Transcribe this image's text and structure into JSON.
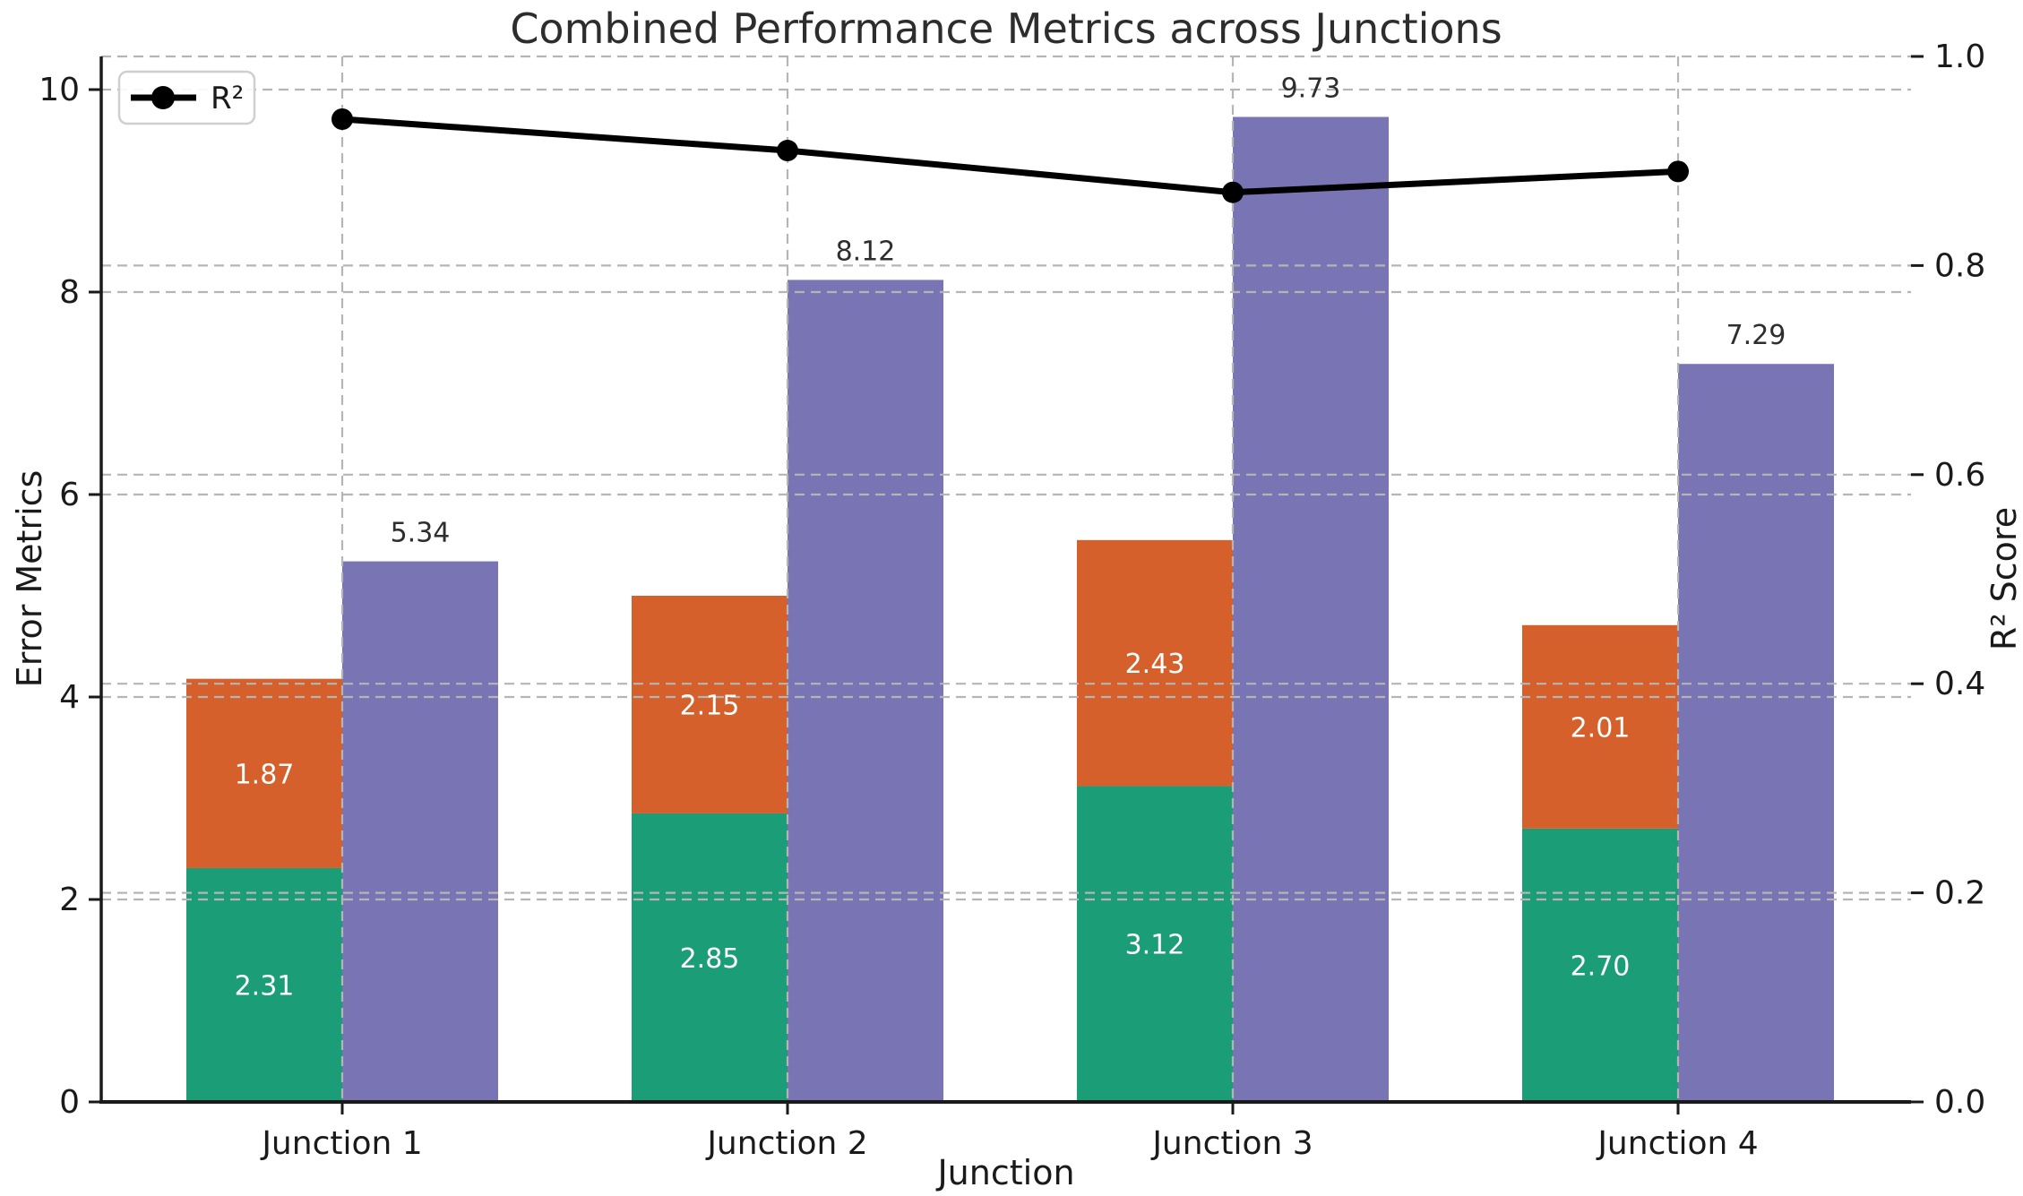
{
  "title": "Combined Performance Metrics across Junctions",
  "axes": {
    "x_label": "Junction",
    "y_left_label": "Error Metrics",
    "y_right_label": "R² Score",
    "y_left_ticks": [
      "0",
      "2",
      "4",
      "6",
      "8",
      "10"
    ],
    "y_right_ticks": [
      "0.0",
      "0.2",
      "0.4",
      "0.6",
      "0.8",
      "1.0"
    ]
  },
  "legend": {
    "r2_label": "R²",
    "position": "upper-left"
  },
  "colors": {
    "green_bar": "#1b9e77",
    "orange_bar": "#d5602b",
    "purple_bar": "#7974b4",
    "line": "#000000",
    "grid": "#b5b5b5",
    "bar_label_light": "#ffffff",
    "bar_label_dark": "#2e2e2e",
    "spine": "#1a1a1a"
  },
  "chart_data": {
    "type": "bar",
    "subtype": "stacked-bar + grouped-bar + line (dual y-axis)",
    "categories": [
      "Junction 1",
      "Junction 2",
      "Junction 3",
      "Junction 4"
    ],
    "series": [
      {
        "name": "green_stack_segment",
        "axis": "left",
        "kind": "bar-stack-bottom",
        "values": [
          2.31,
          2.85,
          3.12,
          2.7
        ]
      },
      {
        "name": "orange_stack_segment",
        "axis": "left",
        "kind": "bar-stack-top",
        "values": [
          1.87,
          2.15,
          2.43,
          2.01
        ]
      },
      {
        "name": "purple_bar",
        "axis": "left",
        "kind": "bar",
        "values": [
          5.34,
          8.12,
          9.73,
          7.29
        ]
      },
      {
        "name": "R²",
        "axis": "right",
        "kind": "line",
        "values": [
          0.94,
          0.91,
          0.87,
          0.89
        ]
      }
    ],
    "title": "Combined Performance Metrics across Junctions",
    "xlabel": "Junction",
    "ylabel_left": "Error Metrics",
    "ylabel_right": "R² Score",
    "ylim_left": [
      0,
      10.33
    ],
    "ylim_right": [
      0,
      1.0
    ],
    "grid": true,
    "grid_style": "dashed, both axes (double lines), plus vertical lines at category centers",
    "bar_value_labels": {
      "green": [
        "2.31",
        "2.85",
        "3.12",
        "2.70"
      ],
      "orange": [
        "1.87",
        "2.15",
        "2.43",
        "2.01"
      ],
      "purple": [
        "5.34",
        "8.12",
        "9.73",
        "7.29"
      ]
    }
  }
}
